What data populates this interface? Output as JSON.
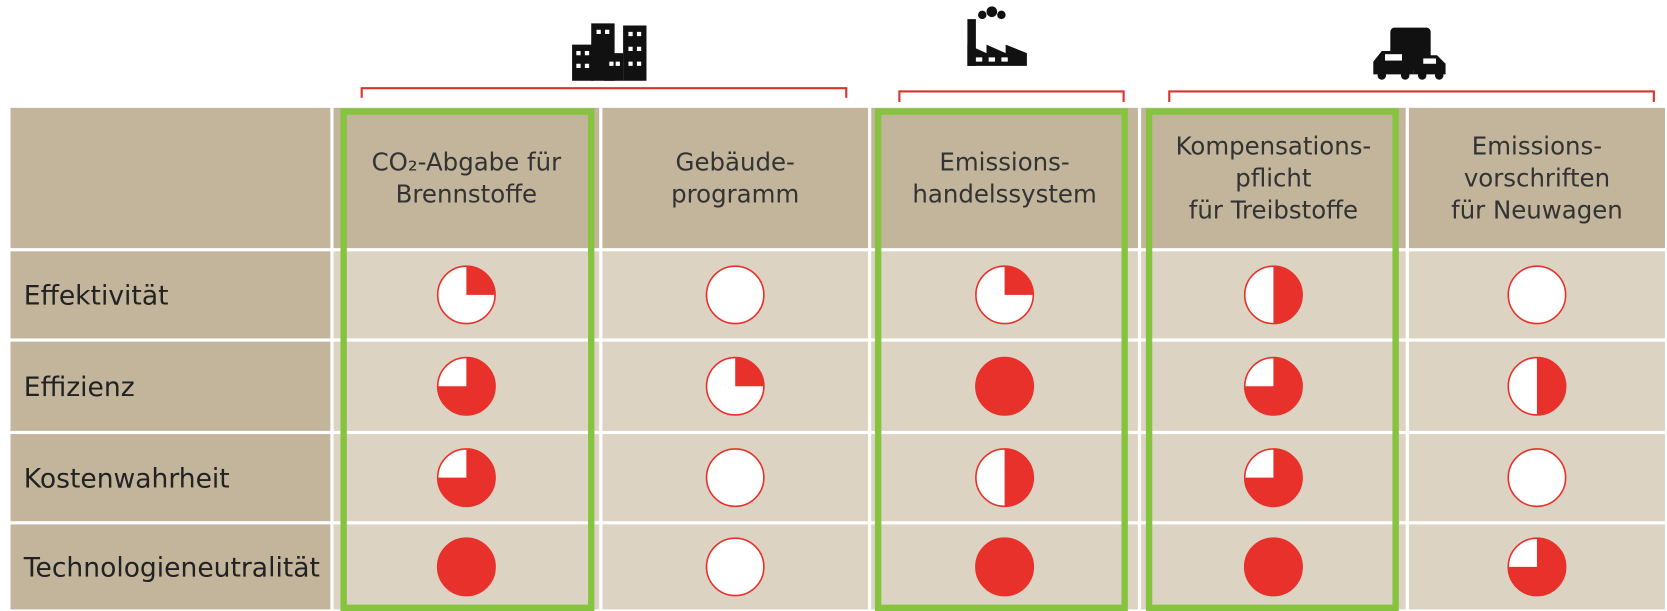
{
  "table": {
    "columns": [
      [
        "CO₂-Abgabe für",
        "Brennstoffe"
      ],
      [
        "Gebäude-",
        "programm"
      ],
      [
        "Emissions-",
        "handelssystem"
      ],
      [
        "Kompensations-",
        "pflicht",
        "für Treibstoffe"
      ],
      [
        "Emissions-",
        "vorschriften",
        "für Neuwagen"
      ]
    ],
    "rows": [
      {
        "label": "Effektivität",
        "values": [
          0.25,
          0,
          0.25,
          0.5,
          0
        ]
      },
      {
        "label": "Effizienz",
        "values": [
          0.75,
          0.25,
          1,
          0.75,
          0.5
        ]
      },
      {
        "label": "Kostenwahrheit",
        "values": [
          0.75,
          0,
          0.5,
          0.75,
          0
        ]
      },
      {
        "label": "Technologieneutralität",
        "values": [
          1,
          0,
          1,
          1,
          0.75
        ]
      }
    ],
    "ball_color": "#e8312a"
  }
}
